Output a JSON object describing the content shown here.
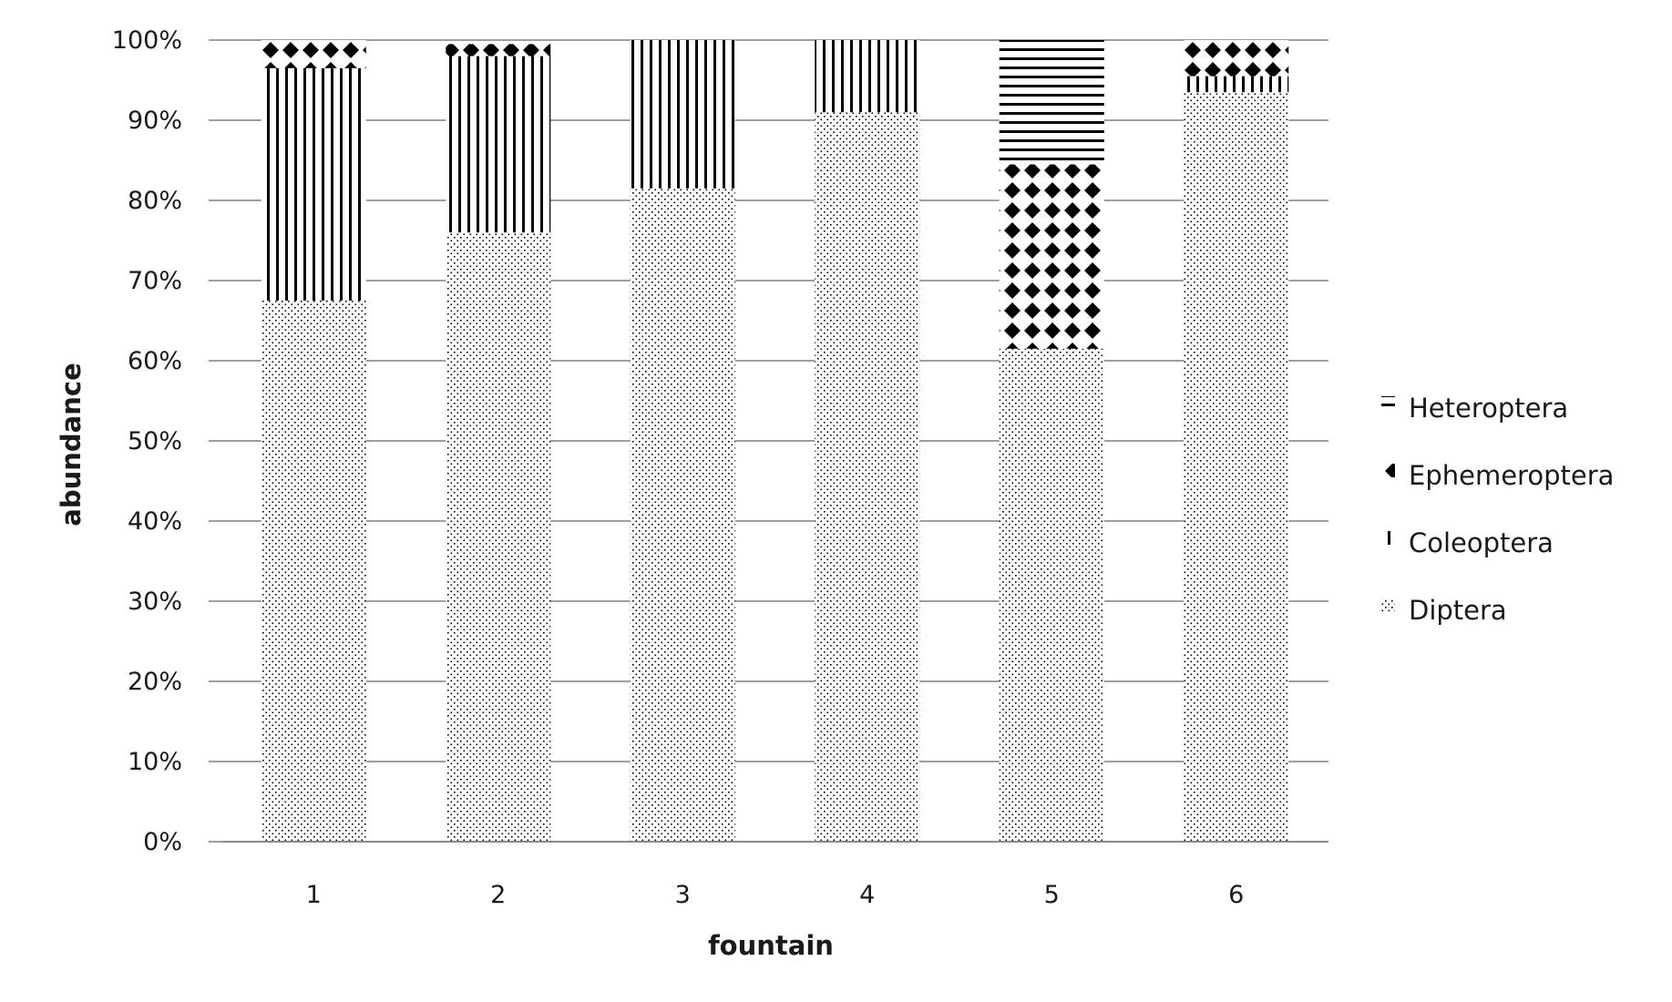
{
  "chart_data": {
    "type": "bar",
    "stacked": true,
    "percent_stacked": true,
    "title": "",
    "xlabel": "fountain",
    "ylabel": "abundance",
    "ylim": [
      0,
      100
    ],
    "y_ticks": [
      "0%",
      "10%",
      "20%",
      "30%",
      "40%",
      "50%",
      "60%",
      "70%",
      "80%",
      "90%",
      "100%"
    ],
    "categories": [
      "1",
      "2",
      "3",
      "4",
      "5",
      "6"
    ],
    "series": [
      {
        "name": "Diptera",
        "pattern": "dots",
        "values": [
          67.5,
          76,
          81.5,
          91,
          61.5,
          93.5
        ]
      },
      {
        "name": "Coleoptera",
        "pattern": "vertical-lines",
        "values": [
          29,
          22,
          18.5,
          9,
          0,
          2
        ]
      },
      {
        "name": "Ephemeroptera",
        "pattern": "diamonds",
        "values": [
          3.5,
          1.5,
          0,
          0,
          23,
          4.5
        ]
      },
      {
        "name": "Heteroptera",
        "pattern": "horizontal-lines",
        "values": [
          0,
          0,
          0,
          0,
          15.5,
          0
        ]
      }
    ],
    "legend_order": [
      "Heteroptera",
      "Ephemeroptera",
      "Coleoptera",
      "Diptera"
    ],
    "legend_position": "right",
    "grid": true,
    "colors": {
      "grid": "#9e9e9e",
      "axis": "#8a8a8a",
      "ink": "#000000",
      "text": "#1a1a1a"
    }
  }
}
